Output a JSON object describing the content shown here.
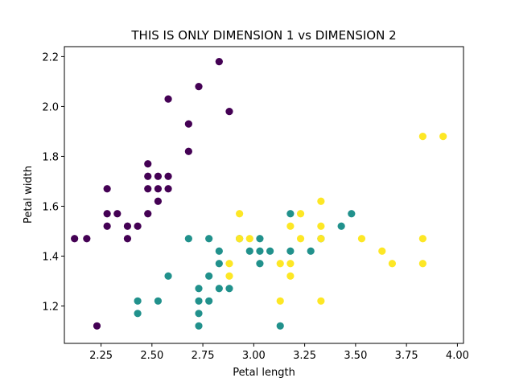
{
  "chart_data": {
    "type": "scatter",
    "title": "THIS IS ONLY DIMENSION 1 vs DIMENSION 2",
    "xlabel": "Petal length",
    "ylabel": "Petal width",
    "xlim": [
      2.07,
      4.03
    ],
    "ylim": [
      1.05,
      2.24
    ],
    "xticks": [
      "2.25",
      "2.50",
      "2.75",
      "3.00",
      "3.25",
      "3.50",
      "3.75",
      "4.00"
    ],
    "yticks": [
      "1.2",
      "1.4",
      "1.6",
      "1.8",
      "2.0",
      "2.2"
    ],
    "grid": false,
    "colors": {
      "class0": "#440154",
      "class1": "#21918c",
      "class2": "#fde725"
    },
    "series": [
      {
        "color": "#440154",
        "points": [
          [
            2.12,
            1.47
          ],
          [
            2.18,
            1.47
          ],
          [
            2.23,
            1.12
          ],
          [
            2.28,
            1.67
          ],
          [
            2.28,
            1.57
          ],
          [
            2.28,
            1.52
          ],
          [
            2.33,
            1.57
          ],
          [
            2.38,
            1.52
          ],
          [
            2.38,
            1.47
          ],
          [
            2.43,
            1.52
          ],
          [
            2.48,
            1.77
          ],
          [
            2.48,
            1.72
          ],
          [
            2.48,
            1.67
          ],
          [
            2.48,
            1.57
          ],
          [
            2.53,
            1.72
          ],
          [
            2.53,
            1.67
          ],
          [
            2.53,
            1.62
          ],
          [
            2.58,
            1.72
          ],
          [
            2.58,
            1.67
          ],
          [
            2.58,
            2.03
          ],
          [
            2.68,
            1.93
          ],
          [
            2.68,
            1.82
          ],
          [
            2.73,
            2.08
          ],
          [
            2.83,
            2.18
          ],
          [
            2.88,
            1.98
          ]
        ]
      },
      {
        "color": "#21918c",
        "points": [
          [
            2.43,
            1.22
          ],
          [
            2.43,
            1.17
          ],
          [
            2.53,
            1.22
          ],
          [
            2.58,
            1.32
          ],
          [
            2.68,
            1.47
          ],
          [
            2.73,
            1.27
          ],
          [
            2.73,
            1.22
          ],
          [
            2.73,
            1.17
          ],
          [
            2.73,
            1.12
          ],
          [
            2.78,
            1.47
          ],
          [
            2.78,
            1.32
          ],
          [
            2.78,
            1.22
          ],
          [
            2.83,
            1.42
          ],
          [
            2.83,
            1.37
          ],
          [
            2.83,
            1.27
          ],
          [
            2.88,
            1.27
          ],
          [
            2.93,
            1.47
          ],
          [
            2.98,
            1.42
          ],
          [
            3.03,
            1.47
          ],
          [
            3.03,
            1.42
          ],
          [
            3.03,
            1.37
          ],
          [
            3.08,
            1.42
          ],
          [
            3.13,
            1.12
          ],
          [
            3.18,
            1.57
          ],
          [
            3.18,
            1.42
          ],
          [
            3.28,
            1.42
          ],
          [
            3.33,
            1.47
          ],
          [
            3.43,
            1.52
          ],
          [
            3.48,
            1.57
          ]
        ]
      },
      {
        "color": "#fde725",
        "points": [
          [
            2.88,
            1.37
          ],
          [
            2.88,
            1.32
          ],
          [
            2.93,
            1.57
          ],
          [
            2.93,
            1.47
          ],
          [
            2.98,
            1.47
          ],
          [
            3.13,
            1.37
          ],
          [
            3.13,
            1.22
          ],
          [
            3.18,
            1.52
          ],
          [
            3.18,
            1.37
          ],
          [
            3.18,
            1.32
          ],
          [
            3.23,
            1.57
          ],
          [
            3.23,
            1.47
          ],
          [
            3.33,
            1.62
          ],
          [
            3.33,
            1.52
          ],
          [
            3.33,
            1.47
          ],
          [
            3.33,
            1.22
          ],
          [
            3.53,
            1.47
          ],
          [
            3.63,
            1.42
          ],
          [
            3.68,
            1.37
          ],
          [
            3.83,
            1.88
          ],
          [
            3.83,
            1.47
          ],
          [
            3.83,
            1.37
          ],
          [
            3.93,
            1.88
          ]
        ]
      }
    ]
  }
}
